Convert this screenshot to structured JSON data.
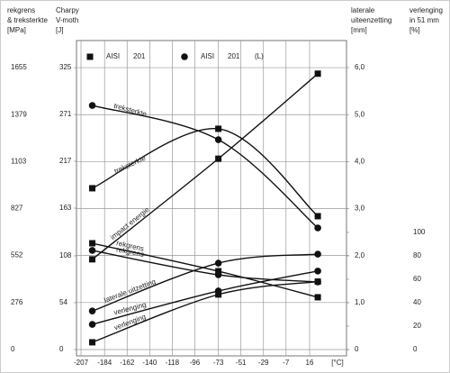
{
  "chart_data": {
    "type": "line",
    "x_unit": "[°C]",
    "x": [
      -196,
      -73,
      24
    ],
    "xlim": [
      -211.4,
      52
    ],
    "xticks": [
      -207,
      -184,
      -162,
      -140,
      -118,
      -96,
      -73,
      -51,
      -29,
      -7,
      16
    ],
    "grid": true,
    "color": "#111111",
    "axes": [
      {
        "id": "mpa",
        "side": "left",
        "title": [
          "rekgrens",
          "& treksterkte",
          "[MPa]"
        ],
        "ylim": [
          -37,
          1814
        ],
        "yticks": [
          0,
          276,
          552,
          827,
          1103,
          1379,
          1655
        ]
      },
      {
        "id": "j",
        "side": "left",
        "title": [
          "Charpy",
          "V-moth",
          "[J]"
        ],
        "ylim": [
          -7.3,
          356.2
        ],
        "yticks": [
          0,
          54,
          108,
          163,
          217,
          271,
          325
        ]
      },
      {
        "id": "mm",
        "side": "right",
        "title": [
          "laterale",
          "uiteenzetting",
          "[mm]"
        ],
        "ylim": [
          -0.134,
          6.575
        ],
        "yticks": [
          0,
          {
            "value": 1,
            "label": "1,0"
          },
          {
            "value": 2,
            "label": "2,0"
          },
          {
            "value": 3,
            "label": "3,0"
          },
          {
            "value": 4,
            "label": "4,0"
          },
          {
            "value": 5,
            "label": "5,0"
          },
          {
            "value": 6,
            "label": "6,0"
          }
        ]
      },
      {
        "id": "pct",
        "side": "right",
        "title": [
          "verlenging",
          "in 51 mm",
          "[%]"
        ],
        "ylim": [
          -5.4,
          263.8
        ],
        "yticks": [
          0,
          20,
          40,
          60,
          80,
          100
        ]
      }
    ],
    "legend": [
      {
        "marker": "square",
        "texts": [
          "AISI",
          "201"
        ]
      },
      {
        "marker": "circle",
        "texts": [
          "AISI",
          "201",
          "(L)"
        ]
      }
    ],
    "series": [
      {
        "name": "treksterkte",
        "marker": "circle",
        "axis": 0,
        "values": [
          1433,
          1232,
          714
        ]
      },
      {
        "name": "treksterkte",
        "marker": "square",
        "axis": 0,
        "values": [
          947,
          1296,
          783
        ]
      },
      {
        "name": "impact energie",
        "marker": "square",
        "axis": 1,
        "values": [
          104,
          220,
          318
        ]
      },
      {
        "name": "rekgrens",
        "marker": "square",
        "axis": 0,
        "values": [
          624,
          460,
          307
        ]
      },
      {
        "name": "rekgrens",
        "marker": "circle",
        "axis": 0,
        "values": [
          582,
          439,
          397
        ]
      },
      {
        "name": "laterale uitzetting",
        "marker": "circle",
        "axis": 2,
        "values": [
          0.82,
          1.84,
          2.03
        ]
      },
      {
        "name": "verlenging",
        "marker": "circle",
        "axis": 3,
        "values": [
          21.5,
          50,
          67
        ]
      },
      {
        "name": "verlenging",
        "marker": "square",
        "axis": 3,
        "values": [
          6.2,
          47,
          58
        ]
      }
    ]
  }
}
